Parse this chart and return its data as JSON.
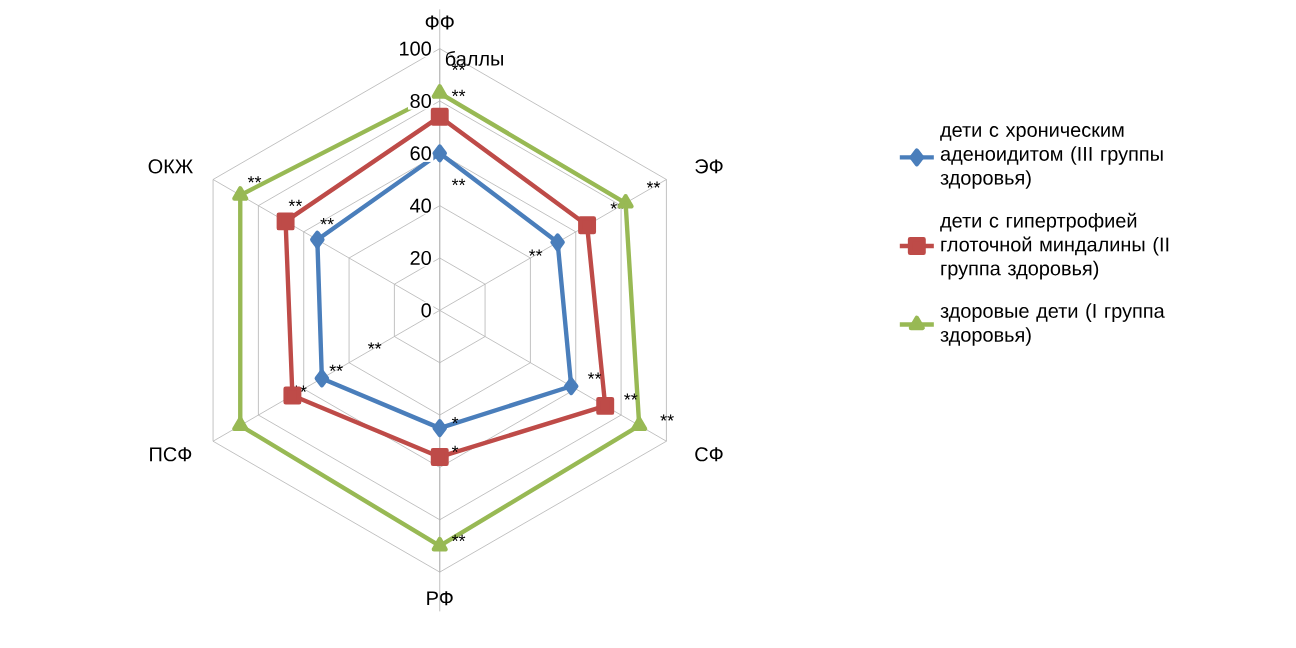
{
  "chart_data": {
    "type": "radar",
    "ylabel": "баллы",
    "categories": [
      "ФФ",
      "ЭФ",
      "СФ",
      "РФ",
      "ПСФ",
      "ОКЖ"
    ],
    "series": [
      {
        "name": "дети с хроническим аденоидитом (III группы здоровья)",
        "color": "#4a7ebb",
        "marker": "diamond",
        "values": [
          60,
          52,
          58,
          45,
          52,
          54
        ]
      },
      {
        "name": "дети с гипертрофией глоточной миндалины (II группа здоровья)",
        "color": "#be4b48",
        "marker": "square",
        "values": [
          74,
          65,
          73,
          56,
          65,
          68
        ]
      },
      {
        "name": "здоровые дети (I группа здоровья)",
        "color": "#98b954",
        "marker": "triangle",
        "values": [
          83,
          82,
          88,
          90,
          88,
          88
        ]
      }
    ],
    "ylim": [
      0,
      100
    ],
    "yticks": [
      0,
      20,
      40,
      60,
      80,
      100
    ],
    "grid": true,
    "legend": "right",
    "annotations": [
      "**",
      "**",
      "**",
      "**",
      "**",
      "**",
      "**",
      "**",
      "**",
      "*",
      "*",
      "**",
      "**",
      "**",
      "**",
      "**",
      "**",
      "**"
    ]
  }
}
